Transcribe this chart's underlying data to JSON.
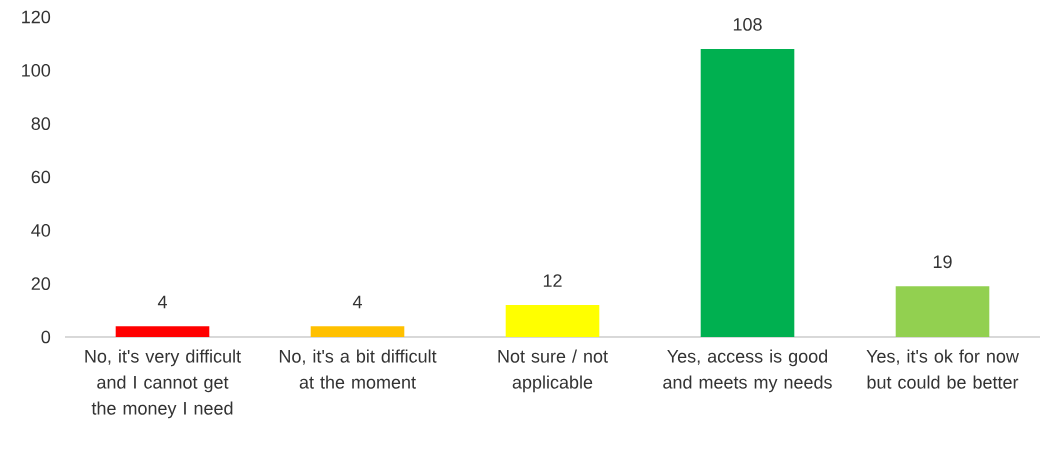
{
  "chart_data": {
    "type": "bar",
    "categories": [
      "No, it's very difficult and I cannot get the money I need",
      "No, it's a bit difficult at the moment",
      "Not sure / not applicable",
      "Yes, access is good and meets my needs",
      "Yes, it's ok for now but could be better"
    ],
    "values": [
      4,
      4,
      12,
      108,
      19
    ],
    "colors": [
      "#ff0000",
      "#ffc000",
      "#ffff00",
      "#00b050",
      "#92d050"
    ],
    "ylim": [
      0,
      120
    ],
    "yticks": [
      0,
      20,
      40,
      60,
      80,
      100,
      120
    ],
    "data_labels": true,
    "grid": false
  }
}
